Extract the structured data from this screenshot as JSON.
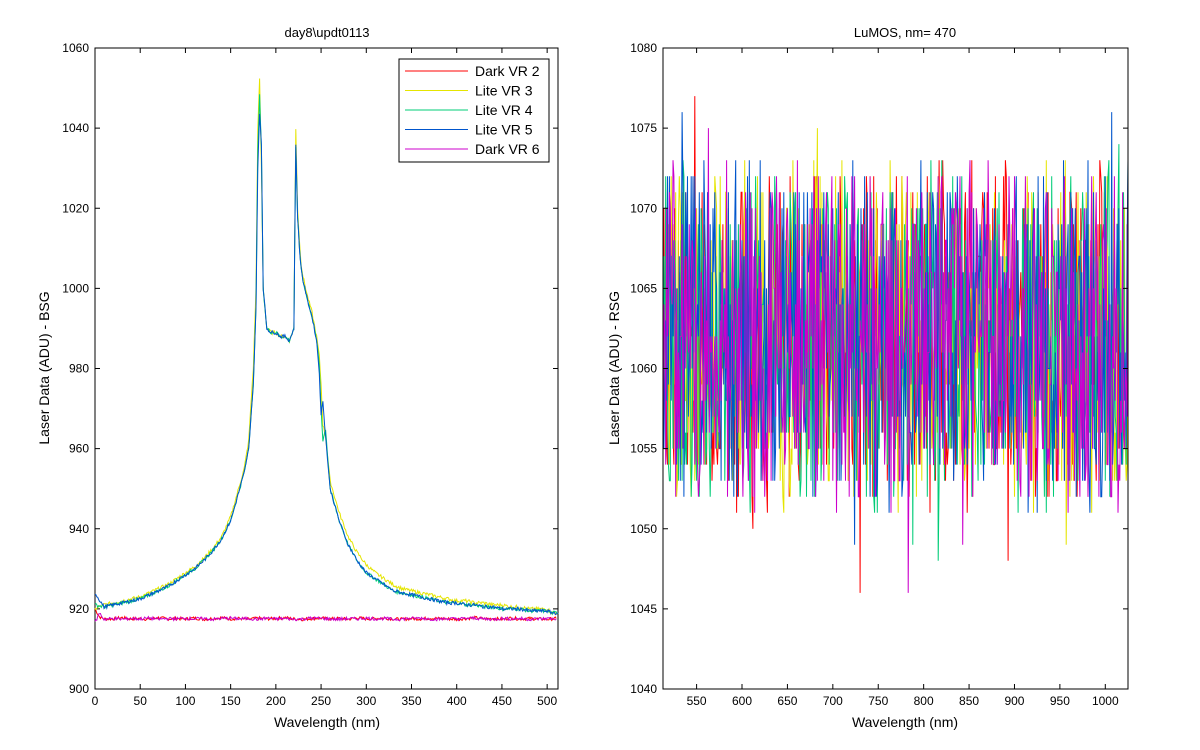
{
  "chart_data": [
    {
      "type": "line",
      "title": "day8\\updt0113",
      "xlabel": "Wavelength (nm)",
      "ylabel": "Laser Data (ADU) - BSG",
      "xlim": [
        0,
        512
      ],
      "ylim": [
        900,
        1060
      ],
      "xticks": [
        0,
        50,
        100,
        150,
        200,
        250,
        300,
        350,
        400,
        450,
        500
      ],
      "yticks": [
        900,
        920,
        940,
        960,
        980,
        1000,
        1020,
        1040,
        1060
      ],
      "legend_position": "top-right",
      "series": [
        {
          "name": "Dark VR 2",
          "color": "#ff0000",
          "x": [
            0,
            5,
            10,
            20,
            30,
            40,
            50,
            60,
            70,
            80,
            90,
            100,
            110,
            120,
            130,
            140,
            150,
            160,
            170,
            180,
            190,
            200,
            210,
            220,
            230,
            240,
            250,
            260,
            270,
            280,
            290,
            300,
            310,
            320,
            330,
            340,
            350,
            360,
            370,
            380,
            390,
            400,
            410,
            420,
            430,
            440,
            450,
            460,
            470,
            480,
            490,
            500,
            510
          ],
          "y": [
            920,
            918,
            917.5,
            917.5,
            917.8,
            917.5,
            917.6,
            917.4,
            917.8,
            917.5,
            917.6,
            917.5,
            917.7,
            917.4,
            917.6,
            917.8,
            917.5,
            917.6,
            917.4,
            917.7,
            917.5,
            917.6,
            917.8,
            917.5,
            917.4,
            917.6,
            917.7,
            917.5,
            917.6,
            917.4,
            917.8,
            917.5,
            917.6,
            917.7,
            917.5,
            917.4,
            917.6,
            917.5,
            917.7,
            917.6,
            917.5,
            917.4,
            917.6,
            917.8,
            917.5,
            917.6,
            917.4,
            917.7,
            917.5,
            917.6,
            917.5,
            917.4,
            917.6
          ]
        },
        {
          "name": "Lite VR 3",
          "color": "#e5e500",
          "x": [
            0,
            10,
            20,
            30,
            40,
            50,
            60,
            70,
            80,
            90,
            100,
            110,
            120,
            130,
            140,
            150,
            160,
            165,
            170,
            175,
            178,
            180,
            182,
            184,
            186,
            190,
            195,
            200,
            205,
            210,
            215,
            220,
            222,
            224,
            226,
            228,
            230,
            235,
            240,
            245,
            248,
            250,
            252,
            255,
            260,
            270,
            280,
            290,
            300,
            310,
            320,
            330,
            340,
            350,
            360,
            370,
            380,
            390,
            400,
            410,
            420,
            430,
            440,
            450,
            460,
            470,
            480,
            490,
            500,
            505,
            512
          ],
          "y": [
            920,
            921,
            921.5,
            922,
            922.5,
            923,
            924,
            925,
            926,
            927.5,
            929,
            930.5,
            932.5,
            935,
            938,
            943,
            951,
            955,
            962,
            980,
            1000,
            1040,
            1052,
            1030,
            1000,
            990,
            989,
            989,
            988,
            988,
            987,
            990,
            1040,
            1020,
            1012,
            1006,
            1003,
            998,
            994,
            988,
            983,
            976,
            966,
            963,
            952,
            944,
            938,
            934,
            931,
            929,
            927.5,
            926,
            925,
            924.5,
            924,
            923.5,
            923,
            922.5,
            922,
            922,
            921.5,
            921.5,
            921,
            921,
            920.5,
            920.5,
            920,
            920,
            920,
            919,
            919
          ]
        },
        {
          "name": "Lite VR 4",
          "color": "#00cc77",
          "x": [
            0,
            10,
            20,
            30,
            40,
            50,
            60,
            70,
            80,
            90,
            100,
            110,
            120,
            130,
            140,
            150,
            160,
            165,
            170,
            175,
            178,
            180,
            182,
            184,
            186,
            190,
            195,
            200,
            205,
            210,
            215,
            220,
            222,
            224,
            226,
            228,
            230,
            235,
            240,
            245,
            248,
            250,
            252,
            255,
            260,
            270,
            280,
            290,
            300,
            310,
            320,
            330,
            340,
            350,
            360,
            370,
            380,
            390,
            400,
            410,
            420,
            430,
            440,
            450,
            460,
            470,
            480,
            490,
            500,
            505,
            512
          ],
          "y": [
            921,
            920.5,
            921,
            921.5,
            922,
            922.5,
            923.5,
            924.5,
            925.5,
            927,
            928.5,
            930,
            932,
            934.5,
            937.5,
            942,
            950,
            954,
            960,
            976,
            995,
            1035,
            1048,
            1035,
            1000,
            990,
            989,
            989,
            988,
            988,
            987,
            990,
            1035,
            1018,
            1010,
            1005,
            1002,
            997,
            993,
            987,
            981,
            970,
            962,
            965,
            950,
            942,
            936,
            932,
            929,
            927.5,
            926,
            924.5,
            924,
            923.5,
            923,
            922.5,
            922,
            921.5,
            921.5,
            921,
            921,
            920.5,
            920.5,
            920,
            920,
            920,
            919.5,
            919.5,
            919.5,
            919,
            919
          ]
        },
        {
          "name": "Lite VR 5",
          "color": "#0055cc",
          "x": [
            0,
            10,
            20,
            30,
            40,
            50,
            60,
            70,
            80,
            90,
            100,
            110,
            120,
            130,
            140,
            150,
            160,
            165,
            170,
            175,
            178,
            180,
            182,
            184,
            186,
            190,
            195,
            200,
            205,
            210,
            215,
            220,
            222,
            224,
            226,
            228,
            230,
            235,
            240,
            245,
            248,
            250,
            252,
            255,
            260,
            270,
            280,
            290,
            300,
            310,
            320,
            330,
            340,
            350,
            360,
            370,
            380,
            390,
            400,
            410,
            420,
            430,
            440,
            450,
            460,
            470,
            480,
            490,
            500,
            505,
            512
          ],
          "y": [
            924,
            920.5,
            921,
            921.5,
            922,
            922.5,
            923.5,
            924.5,
            925.5,
            927,
            928.5,
            930,
            932,
            934.5,
            937.5,
            942,
            950,
            954,
            960,
            976,
            995,
            1030,
            1044,
            1036,
            1000,
            990,
            989,
            989,
            988,
            988,
            987,
            990,
            1036,
            1018,
            1010,
            1005,
            1002,
            997,
            993,
            987,
            979,
            968,
            972,
            963,
            950,
            942,
            936,
            932,
            929,
            927.5,
            926,
            924.5,
            924,
            923.5,
            923,
            922.5,
            922,
            921.5,
            921.5,
            921,
            921,
            920.5,
            920.5,
            920,
            920,
            920,
            919.5,
            919.5,
            919.5,
            919,
            919
          ]
        },
        {
          "name": "Dark VR 6",
          "color": "#cc00cc",
          "x": [
            0,
            5,
            10,
            20,
            30,
            40,
            50,
            60,
            70,
            80,
            90,
            100,
            110,
            120,
            130,
            140,
            150,
            160,
            170,
            180,
            190,
            200,
            210,
            220,
            230,
            240,
            250,
            260,
            270,
            280,
            290,
            300,
            310,
            320,
            330,
            340,
            350,
            360,
            370,
            380,
            390,
            400,
            410,
            420,
            430,
            440,
            450,
            460,
            470,
            480,
            490,
            500,
            510
          ],
          "y": [
            916.5,
            919,
            917.4,
            917.6,
            917.4,
            917.6,
            917.5,
            917.7,
            917.4,
            917.6,
            917.5,
            917.7,
            917.5,
            917.6,
            917.4,
            917.6,
            917.7,
            917.5,
            917.6,
            917.4,
            917.7,
            917.5,
            917.6,
            917.4,
            917.5,
            917.7,
            917.6,
            917.5,
            917.4,
            917.6,
            917.5,
            917.7,
            917.5,
            917.6,
            917.4,
            917.5,
            917.6,
            917.7,
            917.5,
            917.4,
            917.6,
            917.5,
            917.6,
            917.7,
            917.5,
            917.4,
            917.6,
            917.5,
            917.6,
            917.4,
            917.5,
            917.6,
            917.5
          ]
        }
      ]
    },
    {
      "type": "line",
      "title": "LuMOS, nm= 470",
      "xlabel": "Wavelength (nm)",
      "ylabel": "Laser Data (ADU) - RSG",
      "xlim": [
        513,
        1025
      ],
      "ylim": [
        1040,
        1080
      ],
      "xticks": [
        550,
        600,
        650,
        700,
        750,
        800,
        850,
        900,
        950,
        1000
      ],
      "yticks": [
        1040,
        1045,
        1050,
        1055,
        1060,
        1065,
        1070,
        1075,
        1080
      ],
      "grid": false,
      "noise_center": 1062,
      "noise_band": [
        1052,
        1072
      ],
      "series": [
        {
          "color": "#ff0000",
          "notable_extremes": [
            [
              548,
              1077
            ],
            [
              730,
              1046
            ],
            [
              893,
              1048
            ],
            [
              612,
              1050
            ]
          ]
        },
        {
          "color": "#e5e500",
          "notable_extremes": [
            [
              683,
              1075
            ],
            [
              957,
              1049
            ],
            [
              522,
              1072
            ]
          ]
        },
        {
          "color": "#00cc77",
          "notable_extremes": [
            [
              816,
              1048
            ],
            [
              788,
              1049
            ],
            [
              1015,
              1074
            ]
          ]
        },
        {
          "color": "#0055cc",
          "notable_extremes": [
            [
              534,
              1076
            ],
            [
              1007,
              1076
            ],
            [
              724,
              1049
            ]
          ]
        },
        {
          "color": "#cc00cc",
          "notable_extremes": [
            [
              783,
              1046
            ],
            [
              843,
              1049
            ],
            [
              563,
              1075
            ]
          ]
        }
      ]
    }
  ]
}
